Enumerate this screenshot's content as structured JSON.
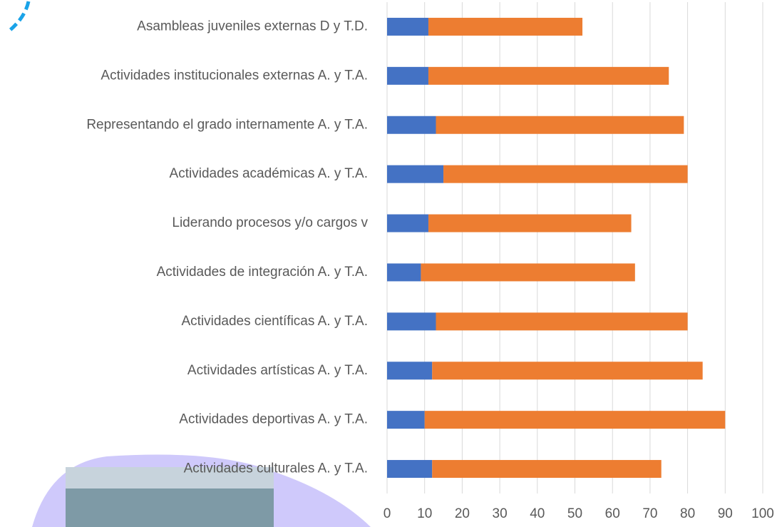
{
  "chart_data": {
    "type": "stacked-barh",
    "categories": [
      "Asambleas juveniles externas D y T.D.",
      "Actividades institucionales externas A. y T.A.",
      "Representando el grado internamente A. y T.A.",
      "Actividades académicas A. y T.A.",
      "Liderando procesos y/o cargos v",
      "Actividades de integración A. y T.A.",
      "Actividades científicas A. y T.A.",
      "Actividades artísticas A. y T.A.",
      "Actividades deportivas A. y T.A.",
      "Actividades culturales A. y T.A."
    ],
    "series": [
      {
        "color": "#4472c4",
        "values": [
          11,
          11,
          13,
          15,
          11,
          9,
          13,
          12,
          10,
          12
        ]
      },
      {
        "color": "#ed7d31",
        "values": [
          41,
          64,
          66,
          65,
          54,
          57,
          67,
          72,
          80,
          61
        ]
      }
    ],
    "xlim": [
      0,
      100
    ],
    "xticks": [
      0,
      10,
      20,
      30,
      40,
      50,
      60,
      70,
      80,
      90,
      100
    ],
    "grid": true
  }
}
